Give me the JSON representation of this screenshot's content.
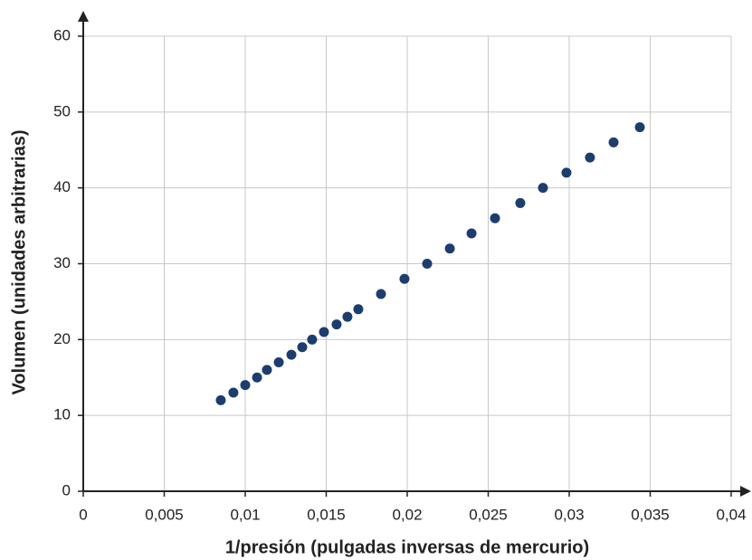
{
  "chart_data": {
    "type": "scatter",
    "x_label": "1/presión (pulgadas inversas de mercurio)",
    "y_label": "Volumen (unidades arbitrarias)",
    "series": [
      {
        "color": "#1d3d6e",
        "x": [
          0.00849,
          0.00927,
          0.01,
          0.01073,
          0.01134,
          0.01207,
          0.01285,
          0.01352,
          0.01413,
          0.01486,
          0.01564,
          0.01631,
          0.01698,
          0.01838,
          0.01983,
          0.02123,
          0.02263,
          0.02397,
          0.02542,
          0.02698,
          0.02838,
          0.02983,
          0.03128,
          0.03274,
          0.03436
        ],
        "values": [
          12,
          13,
          14,
          15,
          16,
          17,
          18,
          19,
          20,
          21,
          22,
          23,
          24,
          26,
          28,
          30,
          32,
          34,
          36,
          38,
          40,
          42,
          44,
          46,
          48
        ]
      }
    ],
    "xlim": [
      0,
      0.04
    ],
    "xticks": [
      0,
      {
        "value": 0.005,
        "label": "0,005"
      },
      {
        "value": 0.01,
        "label": "0,01"
      },
      {
        "value": 0.015,
        "label": "0,015"
      },
      {
        "value": 0.02,
        "label": "0,02"
      },
      {
        "value": 0.025,
        "label": "0,025"
      },
      {
        "value": 0.03,
        "label": "0,03"
      },
      {
        "value": 0.035,
        "label": "0,035"
      },
      {
        "value": 0.04,
        "label": "0,04"
      }
    ],
    "ylim": [
      0,
      60
    ],
    "yticks": [
      0,
      10,
      20,
      30,
      40,
      50,
      60
    ],
    "grid": true
  }
}
